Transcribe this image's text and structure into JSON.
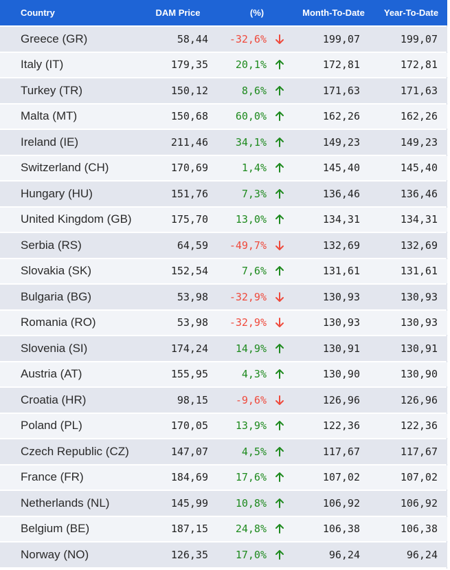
{
  "headers": {
    "country": "Country",
    "dam_price": "DAM Price",
    "pct": "(%)",
    "mtd": "Month-To-Date",
    "ytd": "Year-To-Date"
  },
  "colors": {
    "header_bg": "#1e64d6",
    "up": "#1e8a1e",
    "down": "#ef4a3c"
  },
  "rows": [
    {
      "country": "Greece (GR)",
      "dam": "58,44",
      "pct": "-32,6%",
      "dir": "down",
      "mtd": "199,07",
      "ytd": "199,07"
    },
    {
      "country": "Italy (IT)",
      "dam": "179,35",
      "pct": "20,1%",
      "dir": "up",
      "mtd": "172,81",
      "ytd": "172,81"
    },
    {
      "country": "Turkey (TR)",
      "dam": "150,12",
      "pct": "8,6%",
      "dir": "up",
      "mtd": "171,63",
      "ytd": "171,63"
    },
    {
      "country": "Malta (MT)",
      "dam": "150,68",
      "pct": "60,0%",
      "dir": "up",
      "mtd": "162,26",
      "ytd": "162,26"
    },
    {
      "country": "Ireland (IE)",
      "dam": "211,46",
      "pct": "34,1%",
      "dir": "up",
      "mtd": "149,23",
      "ytd": "149,23"
    },
    {
      "country": "Switzerland (CH)",
      "dam": "170,69",
      "pct": "1,4%",
      "dir": "up",
      "mtd": "145,40",
      "ytd": "145,40"
    },
    {
      "country": "Hungary (HU)",
      "dam": "151,76",
      "pct": "7,3%",
      "dir": "up",
      "mtd": "136,46",
      "ytd": "136,46"
    },
    {
      "country": "United Kingdom (GB)",
      "dam": "175,70",
      "pct": "13,0%",
      "dir": "up",
      "mtd": "134,31",
      "ytd": "134,31"
    },
    {
      "country": "Serbia (RS)",
      "dam": "64,59",
      "pct": "-49,7%",
      "dir": "down",
      "mtd": "132,69",
      "ytd": "132,69"
    },
    {
      "country": "Slovakia (SK)",
      "dam": "152,54",
      "pct": "7,6%",
      "dir": "up",
      "mtd": "131,61",
      "ytd": "131,61"
    },
    {
      "country": "Bulgaria (BG)",
      "dam": "53,98",
      "pct": "-32,9%",
      "dir": "down",
      "mtd": "130,93",
      "ytd": "130,93"
    },
    {
      "country": "Romania (RO)",
      "dam": "53,98",
      "pct": "-32,9%",
      "dir": "down",
      "mtd": "130,93",
      "ytd": "130,93"
    },
    {
      "country": "Slovenia (SI)",
      "dam": "174,24",
      "pct": "14,9%",
      "dir": "up",
      "mtd": "130,91",
      "ytd": "130,91"
    },
    {
      "country": "Austria (AT)",
      "dam": "155,95",
      "pct": "4,3%",
      "dir": "up",
      "mtd": "130,90",
      "ytd": "130,90"
    },
    {
      "country": "Croatia (HR)",
      "dam": "98,15",
      "pct": "-9,6%",
      "dir": "down",
      "mtd": "126,96",
      "ytd": "126,96"
    },
    {
      "country": "Poland (PL)",
      "dam": "170,05",
      "pct": "13,9%",
      "dir": "up",
      "mtd": "122,36",
      "ytd": "122,36"
    },
    {
      "country": "Czech Republic (CZ)",
      "dam": "147,07",
      "pct": "4,5%",
      "dir": "up",
      "mtd": "117,67",
      "ytd": "117,67"
    },
    {
      "country": "France (FR)",
      "dam": "184,69",
      "pct": "17,6%",
      "dir": "up",
      "mtd": "107,02",
      "ytd": "107,02"
    },
    {
      "country": "Netherlands (NL)",
      "dam": "145,99",
      "pct": "10,8%",
      "dir": "up",
      "mtd": "106,92",
      "ytd": "106,92"
    },
    {
      "country": "Belgium (BE)",
      "dam": "187,15",
      "pct": "24,8%",
      "dir": "up",
      "mtd": "106,38",
      "ytd": "106,38"
    },
    {
      "country": "Norway (NO)",
      "dam": "126,35",
      "pct": "17,0%",
      "dir": "up",
      "mtd": "96,24",
      "ytd": "96,24"
    }
  ]
}
